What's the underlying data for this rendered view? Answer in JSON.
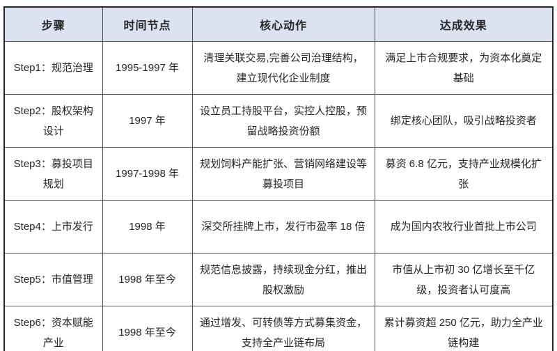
{
  "colors": {
    "header_bg": "#dbe3f1",
    "outer_border": "#262626",
    "inner_border": "#4d4d4d",
    "text": "#262626"
  },
  "table": {
    "headers": [
      "步骤",
      "时间节点",
      "核心动作",
      "达成效果"
    ],
    "rows": [
      {
        "step": "Step1：规范治理",
        "time": "1995-1997 年",
        "action": "清理关联交易,完善公司治理结构，建立现代化企业制度",
        "result": "满足上市合规要求，为资本化奠定基础"
      },
      {
        "step": "Step2：股权架构设计",
        "time": "1997 年",
        "action": "设立员工持股平台，实控人控股，预留战略投资份额",
        "result": "绑定核心团队，吸引战略投资者"
      },
      {
        "step": "Step3：募投项目规划",
        "time": "1997-1998 年",
        "action": "规划饲料产能扩张、营销网络建设等募投项目",
        "result": "募资 6.8 亿元，支持产业规模化扩张"
      },
      {
        "step": "Step4：上市发行",
        "time": "1998 年",
        "action": "深交所挂牌上市，发行市盈率 18 倍",
        "result": "成为国内农牧行业首批上市公司"
      },
      {
        "step": "Step5：市值管理",
        "time": "1998 年至今",
        "action": "规范信息披露，持续现金分红，推出股权激励",
        "result": "市值从上市初 30 亿增长至千亿级，投资者认可度高"
      },
      {
        "step": "Step6：资本赋能产业",
        "time": "1998 年至今",
        "action": "通过增发、可转债等方式募集资金，支持全产业链布局",
        "result": "累计募资超 250 亿元，助力全产业链构建"
      }
    ]
  }
}
